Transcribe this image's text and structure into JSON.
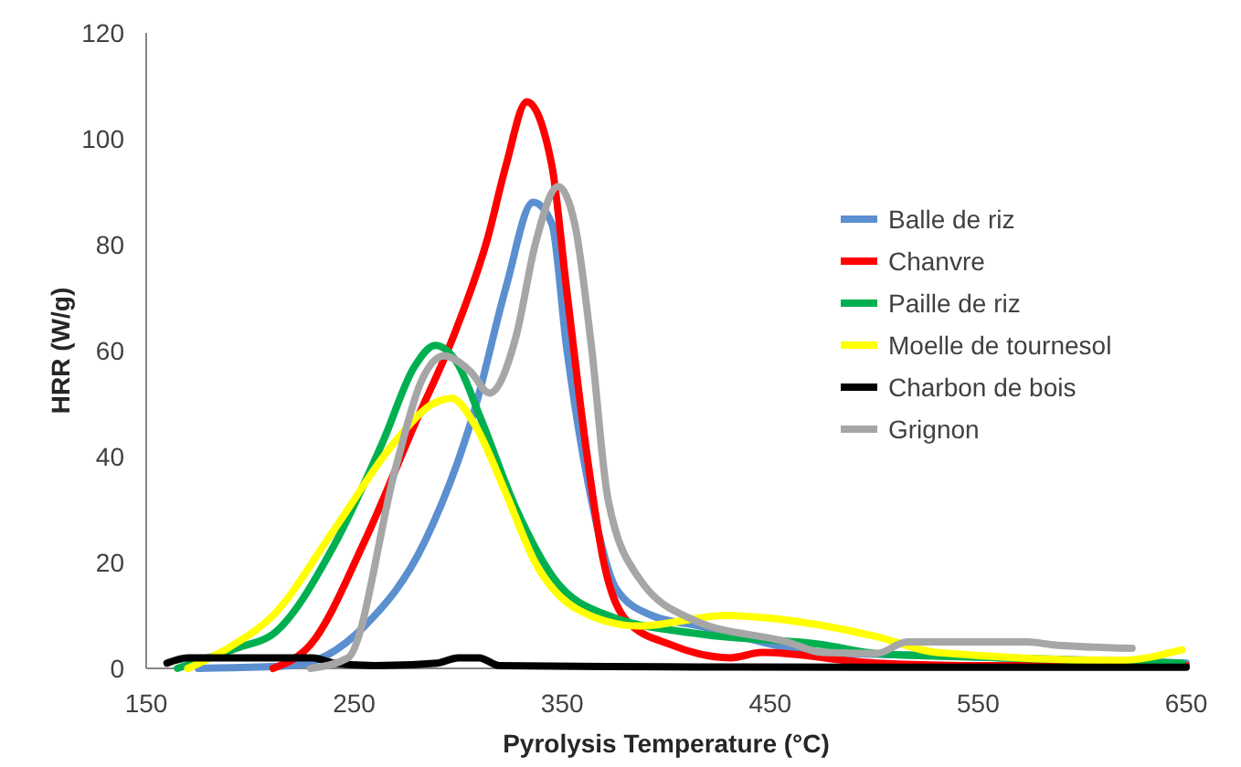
{
  "chart_data": {
    "type": "line",
    "xlabel": "Pyrolysis Temperature (°C)",
    "ylabel": "HRR (W/g)",
    "xlim": [
      150,
      650
    ],
    "xticks": [
      150,
      250,
      350,
      450,
      550,
      650
    ],
    "ylim": [
      0,
      120
    ],
    "yticks": [
      0,
      20,
      40,
      60,
      80,
      100,
      120
    ],
    "grid": false,
    "legend": "right",
    "marker": "none",
    "line_style": "solid",
    "series": [
      {
        "name": "Balle de riz",
        "color": "#5b8fd0",
        "x": [
          175,
          220,
          255,
          284,
          308,
          323,
          336,
          345,
          352,
          364,
          376,
          393,
          416,
          475,
          520,
          650
        ],
        "values": [
          0,
          0.5,
          8,
          24,
          49,
          72,
          88,
          84,
          61,
          32,
          15,
          10,
          8,
          3,
          2.5,
          1
        ]
      },
      {
        "name": "Chanvre",
        "color": "#ff0000",
        "x": [
          211,
          229,
          255,
          279,
          299,
          314,
          323,
          333,
          345,
          352,
          361,
          370,
          381,
          402,
          431,
          446,
          501,
          560,
          650
        ],
        "values": [
          0,
          4.5,
          24,
          46,
          64,
          81,
          95,
          107,
          95,
          72,
          43,
          20,
          9,
          4.5,
          2,
          3,
          1,
          0.5,
          0.5
        ]
      },
      {
        "name": "Paille de riz",
        "color": "#00b050",
        "x": [
          165,
          180,
          195,
          211,
          240,
          264,
          279,
          289,
          299,
          311,
          328,
          346,
          372,
          416,
          475,
          501,
          560,
          648
        ],
        "values": [
          0,
          2,
          4,
          6.5,
          23,
          43,
          57,
          61,
          58,
          47,
          30,
          17,
          10,
          6.5,
          4.5,
          2.8,
          2,
          1
        ]
      },
      {
        "name": "Moelle de tournesol",
        "color": "#ffff00",
        "x": [
          170,
          190,
          211,
          240,
          270,
          288,
          297,
          308,
          323,
          337,
          358,
          387,
          429,
          446,
          501,
          530,
          618,
          648
        ],
        "values": [
          0,
          4,
          10,
          26,
          43,
          50,
          51,
          46,
          33,
          20,
          11,
          8,
          10,
          9.6,
          6,
          3,
          1.5,
          3.5
        ]
      },
      {
        "name": "Charbon de bois",
        "color": "#000000",
        "x": [
          160,
          170,
          200,
          230,
          240,
          260,
          290,
          300,
          310,
          320,
          400,
          500,
          650
        ],
        "values": [
          1,
          2,
          2,
          2,
          1,
          0.5,
          1,
          2,
          2,
          0.5,
          0.3,
          0.2,
          0.2
        ]
      },
      {
        "name": "Grignon",
        "color": "#a6a6a6",
        "x": [
          229,
          247,
          270,
          282,
          293,
          306,
          315,
          328,
          337,
          348,
          356,
          364,
          372,
          387,
          414,
          458,
          475,
          501,
          516,
          574,
          585,
          624
        ],
        "values": [
          0,
          2,
          38,
          54,
          59,
          56,
          52,
          63,
          80,
          91,
          84,
          61,
          32,
          17,
          9,
          5,
          3,
          2.8,
          5,
          5,
          4.5,
          3.8
        ]
      }
    ]
  }
}
